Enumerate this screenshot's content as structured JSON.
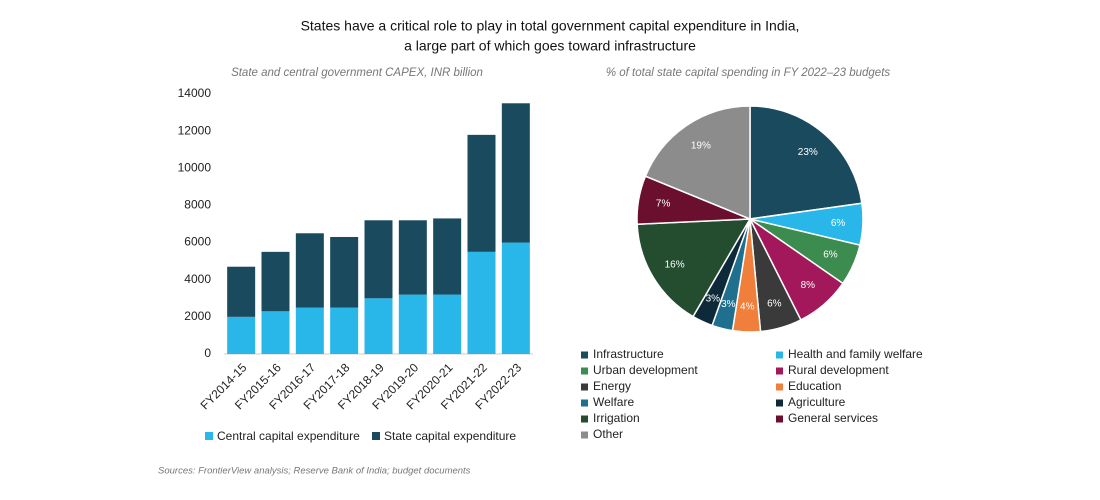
{
  "title": [
    "States have a critical role to play in total government capital expenditure in India,",
    "a large part of which goes toward infrastructure"
  ],
  "source": "Sources: FrontierView analysis; Reserve Bank of India; budget documents",
  "chart_data": [
    {
      "type": "stacked-bar",
      "title": "State and central government CAPEX, INR billion",
      "categories": [
        "FY2014-15",
        "FY2015-16",
        "FY2016-17",
        "FY2017-18",
        "FY2018-19",
        "FY2019-20",
        "FY2020-21",
        "FY2021-22",
        "FY2022-23"
      ],
      "series": [
        {
          "name": "Central capital expenditure",
          "color": "#29b6e8",
          "values": [
            2000,
            2300,
            2500,
            2500,
            3000,
            3200,
            3200,
            5500,
            6000
          ]
        },
        {
          "name": "State capital expenditure",
          "color": "#1a4a5e",
          "values": [
            2700,
            3200,
            4000,
            3800,
            4200,
            4000,
            4100,
            6300,
            7500
          ]
        }
      ],
      "ylim": [
        0,
        14000
      ],
      "yticks": [
        0,
        2000,
        4000,
        6000,
        8000,
        10000,
        12000,
        14000
      ],
      "grid": false,
      "legend": "bottom"
    },
    {
      "type": "pie",
      "title": "% of total state capital spending in FY 2022–23 budgets",
      "categories": [
        "Infrastructure",
        "Health and family welfare",
        "Urban development",
        "Rural development",
        "Energy",
        "Education",
        "Welfare",
        "Agriculture",
        "Irrigation",
        "General services",
        "Other"
      ],
      "values": [
        23,
        6,
        6,
        8,
        6,
        4,
        3,
        3,
        16,
        7,
        19
      ],
      "value_labels": [
        "23%",
        "6%",
        "6%",
        "8%",
        "6%",
        "4%",
        "3%",
        "3%",
        "16%",
        "7%",
        "19%"
      ],
      "colors": [
        "#1a4a5e",
        "#29b6e8",
        "#3c8c4f",
        "#a3185a",
        "#3a3a3a",
        "#f07f3c",
        "#1f6f8f",
        "#0e2a3a",
        "#234d2e",
        "#6b0f2f",
        "#8c8c8c"
      ],
      "legend": "bottom"
    }
  ]
}
